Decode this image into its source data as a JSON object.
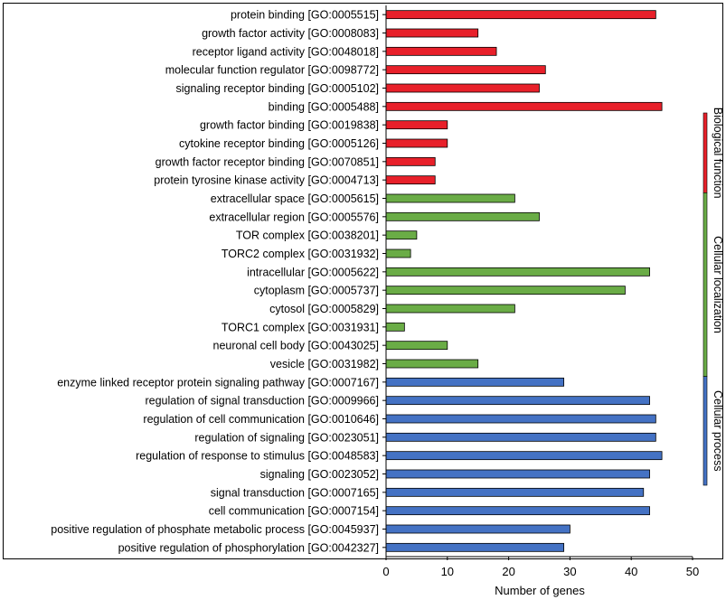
{
  "chart_data": {
    "type": "bar",
    "orientation": "horizontal",
    "xlabel": "Number of genes",
    "xlim": [
      0,
      50
    ],
    "xticks": [
      0,
      10,
      20,
      30,
      40,
      50
    ],
    "grid": false,
    "legend": "none",
    "groups": [
      {
        "name": "Biological function",
        "color": "#e8202a",
        "categories": [
          "protein binding [GO:0005515]",
          "growth factor activity [GO:0008083]",
          "receptor ligand activity [GO:0048018]",
          "molecular function regulator [GO:0098772]",
          "signaling receptor binding [GO:0005102]",
          "binding [GO:0005488]",
          "growth factor binding [GO:0019838]",
          "cytokine receptor binding [GO:0005126]",
          "growth factor receptor binding [GO:0070851]",
          "protein tyrosine kinase activity [GO:0004713]"
        ],
        "values": [
          44,
          15,
          18,
          26,
          25,
          45,
          10,
          10,
          8,
          8
        ]
      },
      {
        "name": "Cellular localization",
        "color": "#6aac46",
        "categories": [
          "extracellular space [GO:0005615]",
          "extracellular region [GO:0005576]",
          "TOR complex [GO:0038201]",
          "TORC2 complex [GO:0031932]",
          "intracellular [GO:0005622]",
          "cytoplasm [GO:0005737]",
          "cytosol [GO:0005829]",
          "TORC1 complex [GO:0031931]",
          "neuronal cell body [GO:0043025]",
          "vesicle [GO:0031982]"
        ],
        "values": [
          21,
          25,
          5,
          4,
          43,
          39,
          21,
          3,
          10,
          15
        ]
      },
      {
        "name": "Cellular process",
        "color": "#4472c4",
        "categories": [
          "enzyme linked receptor protein signaling pathway [GO:0007167]",
          "regulation of signal transduction [GO:0009966]",
          "regulation of cell communication [GO:0010646]",
          "regulation of signaling [GO:0023051]",
          "regulation of response to stimulus [GO:0048583]",
          "signaling [GO:0023052]",
          "signal transduction [GO:0007165]",
          "cell communication [GO:0007154]",
          "positive regulation of phosphate metabolic process [GO:0045937]",
          "positive regulation of phosphorylation [GO:0042327]"
        ],
        "values": [
          29,
          43,
          44,
          44,
          45,
          43,
          42,
          43,
          30,
          29
        ]
      }
    ]
  }
}
